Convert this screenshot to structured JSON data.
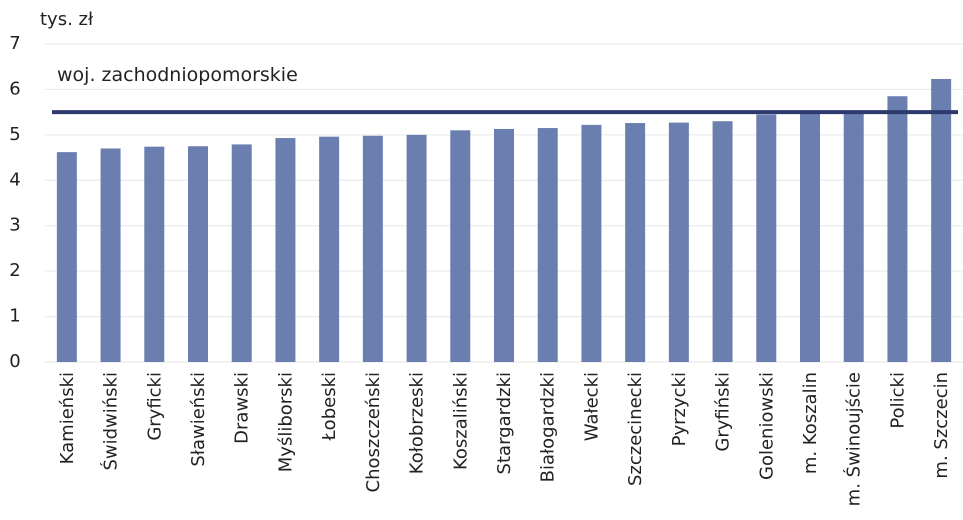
{
  "chart_data": {
    "type": "bar",
    "unit_label": "tys. zł",
    "categories": [
      "Kamieński",
      "Świdwiński",
      "Gryficki",
      "Sławieński",
      "Drawski",
      "Myśliborski",
      "Łobeski",
      "Choszczeński",
      "Kołobrzeski",
      "Koszaliński",
      "Stargardzki",
      "Białogardzki",
      "Wałecki",
      "Szczecinecki",
      "Pyrzycki",
      "Gryfiński",
      "Goleniowski",
      "m. Koszalin",
      "m. Świnoujście",
      "Policki",
      "m. Szczecin"
    ],
    "values": [
      4.62,
      4.7,
      4.74,
      4.75,
      4.79,
      4.93,
      4.96,
      4.98,
      5.0,
      5.1,
      5.13,
      5.15,
      5.22,
      5.26,
      5.27,
      5.3,
      5.45,
      5.5,
      5.52,
      5.85,
      6.23
    ],
    "ylim": [
      0,
      7
    ],
    "yticks": [
      0,
      1,
      2,
      3,
      4,
      5,
      6,
      7
    ],
    "grid": true,
    "reference_line": {
      "label": "woj. zachodniopomorskie",
      "value": 5.5
    },
    "colors": {
      "bar": "#6a7fb0",
      "reference_line": "#2c3a6e",
      "grid": "#e6e6e6"
    }
  }
}
